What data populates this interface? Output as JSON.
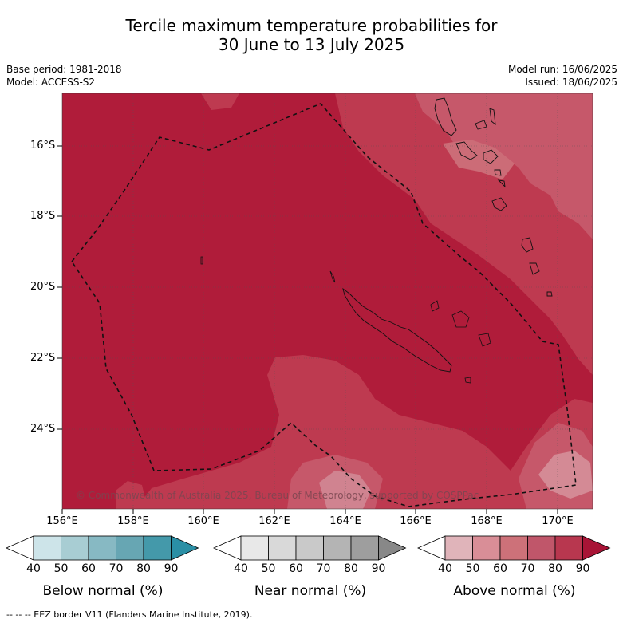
{
  "title": {
    "line1": "Tercile maximum temperature probabilities for",
    "line2": "30 June to 13 July 2025"
  },
  "meta_left": {
    "base_period": "Base period: 1981-2018",
    "model": "Model: ACCESS-S2"
  },
  "meta_right": {
    "model_run": "Model run: 16/06/2025",
    "issued": "Issued: 18/06/2025"
  },
  "map": {
    "lat_labels": [
      "16°S",
      "18°S",
      "20°S",
      "22°S",
      "24°S"
    ],
    "lon_labels": [
      "156°E",
      "158°E",
      "160°E",
      "162°E",
      "164°E",
      "166°E",
      "168°E",
      "170°E"
    ],
    "copyright": "© Commonwealth of Australia 2025, Bureau of Meteorology, supported by COSPPac",
    "colors": {
      "above_80_90": "#b01c3a",
      "above_70_80": "#c03a50",
      "above_60_70": "#c8606c",
      "above_50_60": "#d48790"
    }
  },
  "colorbars": [
    {
      "title": "Below normal (%)",
      "ticks": [
        "40",
        "50",
        "60",
        "70",
        "80",
        "90"
      ],
      "colors": [
        "#ffffff",
        "#cde4e9",
        "#a8cdd3",
        "#87b9c3",
        "#67a6b3",
        "#4499aa",
        "#2a8fa5"
      ]
    },
    {
      "title": "Near normal (%)",
      "ticks": [
        "40",
        "50",
        "60",
        "70",
        "80",
        "90"
      ],
      "colors": [
        "#ffffff",
        "#e8e8e8",
        "#d9d9d9",
        "#c9c9c9",
        "#b4b4b4",
        "#9e9e9e",
        "#888888"
      ]
    },
    {
      "title": "Above normal (%)",
      "ticks": [
        "40",
        "50",
        "60",
        "70",
        "80",
        "90"
      ],
      "colors": [
        "#ffffff",
        "#e0b4ba",
        "#d98e97",
        "#cd7179",
        "#c0566a",
        "#b8374f",
        "#a81436"
      ]
    }
  ],
  "footer": "--  --  -- EEZ border V11 (Flanders Marine Institute, 2019)."
}
